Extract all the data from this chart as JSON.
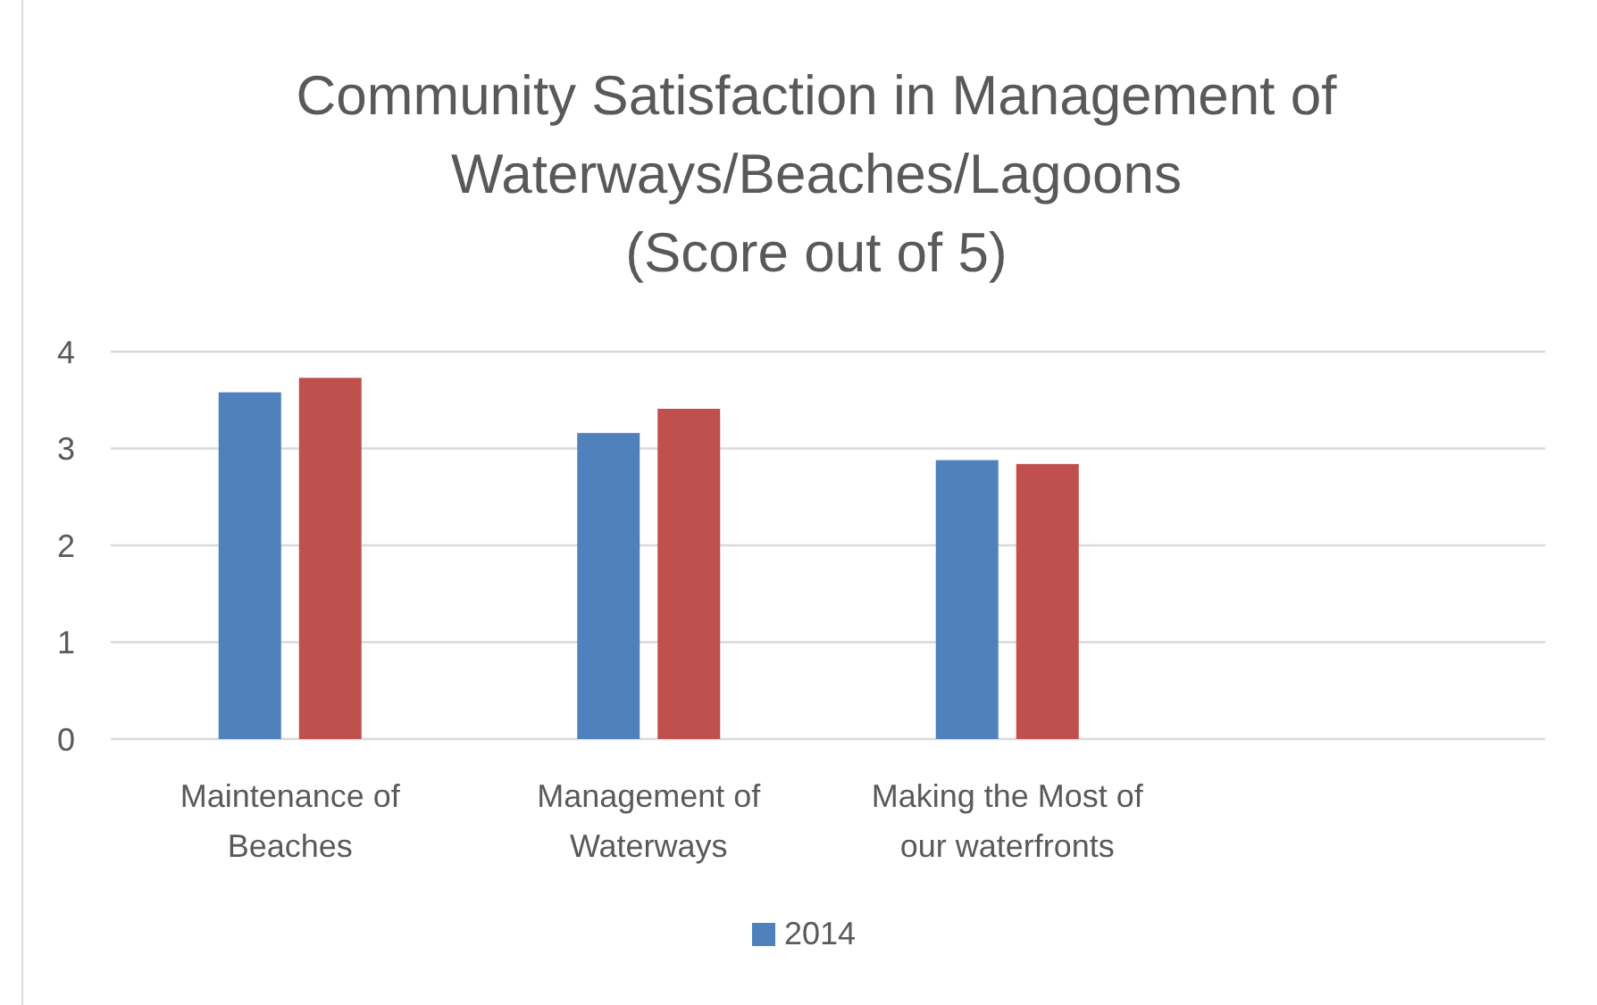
{
  "chart_data": {
    "type": "bar",
    "title": "Community Satisfaction in Management of Waterways/Beaches/Lagoons",
    "subtitle": "(Score out of 5)",
    "categories": [
      "Maintenance of Beaches",
      "Management of Waterways",
      "Making the Most of our waterfronts",
      null
    ],
    "series": [
      {
        "name": "2014",
        "color": "#4f81bd",
        "values": [
          3.58,
          3.16,
          2.88,
          null
        ]
      },
      {
        "color": "#c0504d",
        "values": [
          3.73,
          3.41,
          2.84,
          null
        ]
      }
    ],
    "ylim": [
      0,
      4
    ],
    "yticks": [
      0,
      1,
      2,
      3,
      4
    ],
    "grid": "y",
    "legend": "bottom"
  }
}
